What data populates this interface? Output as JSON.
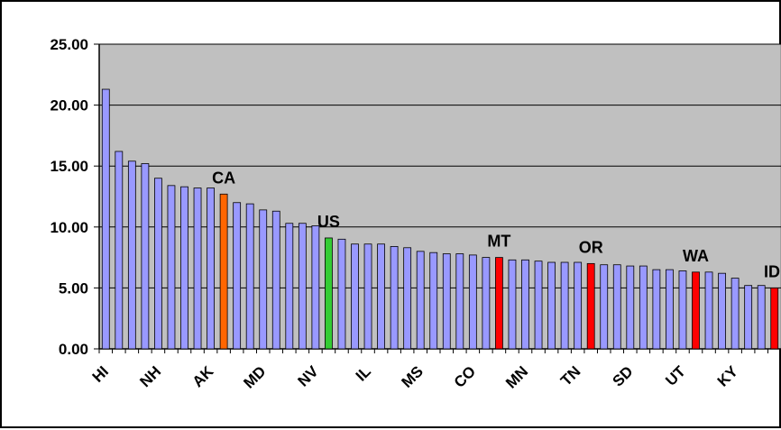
{
  "chart_data": {
    "type": "bar",
    "title": "",
    "xlabel": "",
    "ylabel": "",
    "ylim": [
      0,
      25
    ],
    "yticks": [
      "0.00",
      "5.00",
      "10.00",
      "15.00",
      "20.00",
      "25.00"
    ],
    "grid": true,
    "legend": "none",
    "colors": {
      "plot_background": "#c0c0c0",
      "default_bar": "#9999ff",
      "bar_outline": "#000000",
      "highlight_ca": "#ff6600",
      "highlight_us": "#33cc33",
      "highlight_red": "#ff0000"
    },
    "x_tick_labels": [
      "HI",
      "NH",
      "AK",
      "MD",
      "NV",
      "IL",
      "MS",
      "CO",
      "MN",
      "TN",
      "SD",
      "UT",
      "KY"
    ],
    "annotations": [
      "CA",
      "US",
      "MT",
      "OR",
      "WA",
      "ID"
    ],
    "values": [
      21.3,
      16.2,
      15.4,
      15.2,
      14.0,
      13.4,
      13.3,
      13.2,
      13.2,
      12.7,
      12.0,
      11.9,
      11.4,
      11.3,
      10.3,
      10.3,
      10.1,
      9.1,
      9.0,
      8.6,
      8.6,
      8.6,
      8.4,
      8.3,
      8.0,
      7.9,
      7.8,
      7.8,
      7.7,
      7.5,
      7.5,
      7.3,
      7.3,
      7.2,
      7.1,
      7.1,
      7.1,
      7.0,
      6.9,
      6.9,
      6.8,
      6.8,
      6.5,
      6.5,
      6.4,
      6.3,
      6.3,
      6.2,
      5.8,
      5.2,
      5.2,
      5.0
    ],
    "bar_colors": [
      "default",
      "default",
      "default",
      "default",
      "default",
      "default",
      "default",
      "default",
      "default",
      "highlight_ca",
      "default",
      "default",
      "default",
      "default",
      "default",
      "default",
      "default",
      "highlight_us",
      "default",
      "default",
      "default",
      "default",
      "default",
      "default",
      "default",
      "default",
      "default",
      "default",
      "default",
      "default",
      "highlight_red",
      "default",
      "default",
      "default",
      "default",
      "default",
      "default",
      "highlight_red",
      "default",
      "default",
      "default",
      "default",
      "default",
      "default",
      "default",
      "highlight_red",
      "default",
      "default",
      "default",
      "default",
      "default",
      "highlight_red"
    ]
  }
}
